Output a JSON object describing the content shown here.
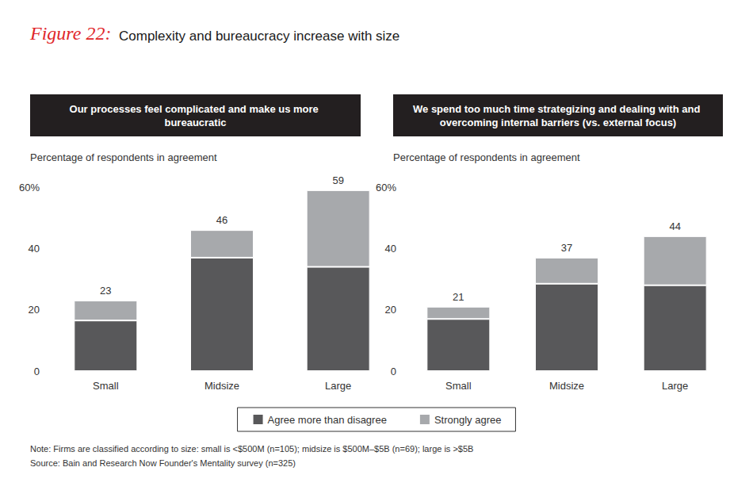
{
  "title": "Figure 22:",
  "subtitle": "Complexity and bureaucracy increase with size",
  "note": "Note: Firms are classified according to size: small is <$500M (n=105); midsize is $500M–$5B (n=69); large is >$5B",
  "source": "Source: Bain and Research Now Founder's Mentality survey (n=325)",
  "chart_data": [
    {
      "type": "bar",
      "title": "Our processes feel complicated and make us more bureaucratic",
      "y_label": "Percentage of respondents in agreement",
      "categories": [
        "Small",
        "Midsize",
        "Large"
      ],
      "series": [
        {
          "name": "Agree more than disagree",
          "color": "#58585a",
          "values": [
            16.5,
            37,
            34
          ]
        },
        {
          "name": "Strongly agree",
          "color": "#a7a9ac",
          "values": [
            6.5,
            9,
            25
          ]
        }
      ],
      "totals": [
        23,
        46,
        59
      ],
      "stacked": true,
      "ylim": [
        0,
        60
      ],
      "yticks": [
        0,
        20,
        40,
        {
          "value": 60,
          "label": "60%"
        }
      ],
      "grid": false,
      "legend": "bottom"
    },
    {
      "type": "bar",
      "title": "We spend too much time strategizing and dealing with and overcoming internal barriers (vs. external focus)",
      "y_label": "Percentage of respondents in agreement",
      "categories": [
        "Small",
        "Midsize",
        "Large"
      ],
      "series": [
        {
          "name": "Agree more than disagree",
          "color": "#58585a",
          "values": [
            17,
            28.5,
            28
          ]
        },
        {
          "name": "Strongly agree",
          "color": "#a7a9ac",
          "values": [
            4,
            8.5,
            16
          ]
        }
      ],
      "totals": [
        21,
        37,
        44
      ],
      "stacked": true,
      "ylim": [
        0,
        60
      ],
      "yticks": [
        0,
        20,
        40,
        {
          "value": 60,
          "label": "60%"
        }
      ],
      "grid": false
    }
  ]
}
